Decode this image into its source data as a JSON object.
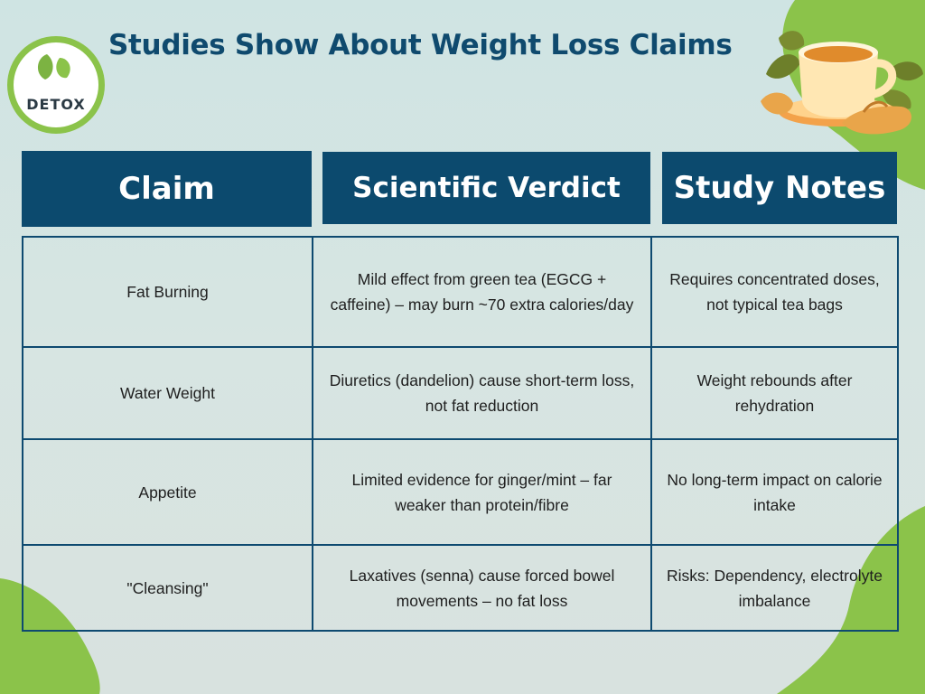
{
  "title": "Studies Show About Weight Loss Claims",
  "logo": {
    "text": "DETOX"
  },
  "table": {
    "headers": [
      "Claim",
      "Scientific Verdict",
      "Study Notes"
    ],
    "rows": [
      {
        "claim": "Fat Burning",
        "verdict": "Mild effect from green tea (EGCG + caffeine) – may burn ~70 extra calories/day",
        "notes": "Requires concentrated doses, not typical tea bags"
      },
      {
        "claim": "Water Weight",
        "verdict": "Diuretics (dandelion) cause short-term loss, not fat reduction",
        "notes": "Weight rebounds after rehydration"
      },
      {
        "claim": "Appetite",
        "verdict": "Limited evidence for ginger/mint – far weaker than protein/fibre",
        "notes": "No long-term impact on calorie intake"
      },
      {
        "claim": "\"Cleansing\"",
        "verdict": "Laxatives (senna) cause forced bowel movements – no fat loss",
        "notes": "Risks: Dependency, electrolyte imbalance"
      }
    ]
  },
  "colors": {
    "navy": "#0c4a6e",
    "green": "#8bc34a",
    "title": "#0f4a6e"
  },
  "icons": [
    "leaf-icon",
    "tea-cup-icon",
    "ginger-root-icon"
  ]
}
